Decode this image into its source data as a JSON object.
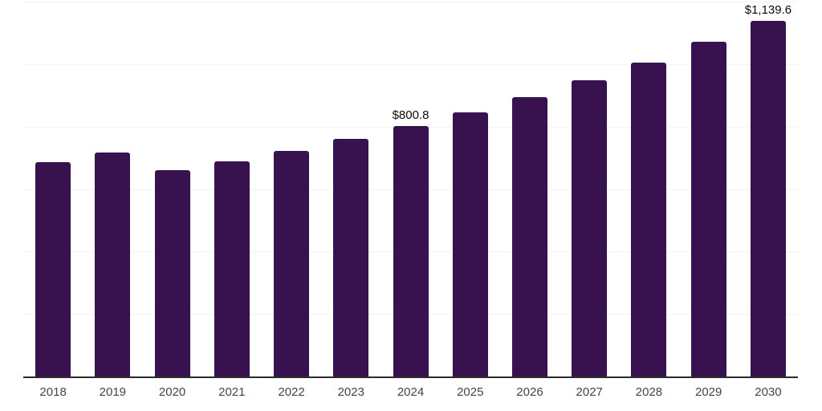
{
  "chart_data": {
    "type": "bar",
    "title": "",
    "xlabel": "",
    "ylabel": "",
    "categories": [
      "2018",
      "2019",
      "2020",
      "2021",
      "2022",
      "2023",
      "2024",
      "2025",
      "2026",
      "2027",
      "2028",
      "2029",
      "2030"
    ],
    "values": [
      686,
      717,
      661,
      689,
      722,
      760,
      800.8,
      846,
      894,
      948,
      1005,
      1072,
      1139.6
    ],
    "data_labels": [
      "",
      "",
      "",
      "",
      "",
      "",
      "$800.8",
      "",
      "",
      "",
      "",
      "",
      "$1,139.6"
    ],
    "ylim": [
      0,
      1200
    ],
    "grid_step": 200,
    "grid_on": true,
    "legend": "none",
    "style": {
      "bar_color": "#38114F",
      "gridline_color": "#f3f3f3",
      "axis_line_color": "#2b2b2b",
      "tick_label_color": "#444444",
      "data_label_color": "#0a0a0a"
    }
  }
}
